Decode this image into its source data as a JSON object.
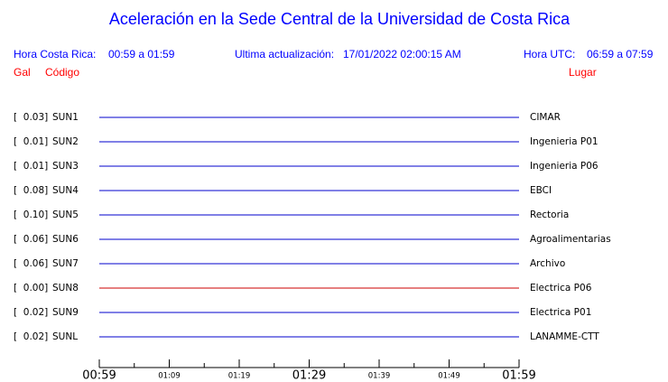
{
  "header": {
    "title": "Aceleración en la Sede Central de la Universidad de Costa Rica",
    "local_label": "Hora Costa Rica:",
    "local_range": "00:59 a 01:59",
    "update_label": "Ultima actualización:",
    "update_time": "17/01/2022 02:00:15 AM",
    "utc_label": "Hora UTC:",
    "utc_range": "06:59 a 07:59",
    "gal_label": "Gal",
    "code_label": "Código",
    "place_label": "Lugar"
  },
  "stations": [
    {
      "gal": "[  0.03]",
      "code": "SUN1",
      "place": "CIMAR",
      "color": "#0000cc"
    },
    {
      "gal": "[  0.01]",
      "code": "SUN2",
      "place": "Ingenieria P01",
      "color": "#0000cc"
    },
    {
      "gal": "[  0.01]",
      "code": "SUN3",
      "place": "Ingenieria P06",
      "color": "#0000cc"
    },
    {
      "gal": "[  0.08]",
      "code": "SUN4",
      "place": "EBCI",
      "color": "#0000cc"
    },
    {
      "gal": "[  0.10]",
      "code": "SUN5",
      "place": "Rectoria",
      "color": "#0000cc"
    },
    {
      "gal": "[  0.06]",
      "code": "SUN6",
      "place": "Agroalimentarias",
      "color": "#0000cc"
    },
    {
      "gal": "[  0.06]",
      "code": "SUN7",
      "place": "Archivo",
      "color": "#0000cc"
    },
    {
      "gal": "[  0.00]",
      "code": "SUN8",
      "place": "Electrica P06",
      "color": "#cc0000"
    },
    {
      "gal": "[  0.02]",
      "code": "SUN9",
      "place": "Electrica P01",
      "color": "#0000cc"
    },
    {
      "gal": "[  0.02]",
      "code": "SUNL",
      "place": "LANAMME-CTT",
      "color": "#0000cc"
    }
  ],
  "axis": {
    "ticks": [
      {
        "label": "00:59",
        "major": true
      },
      {
        "label": "01:09",
        "major": false
      },
      {
        "label": "01:19",
        "major": false
      },
      {
        "label": "01:29",
        "major": true
      },
      {
        "label": "01:39",
        "major": false
      },
      {
        "label": "01:49",
        "major": false
      },
      {
        "label": "01:59",
        "major": true
      }
    ]
  }
}
